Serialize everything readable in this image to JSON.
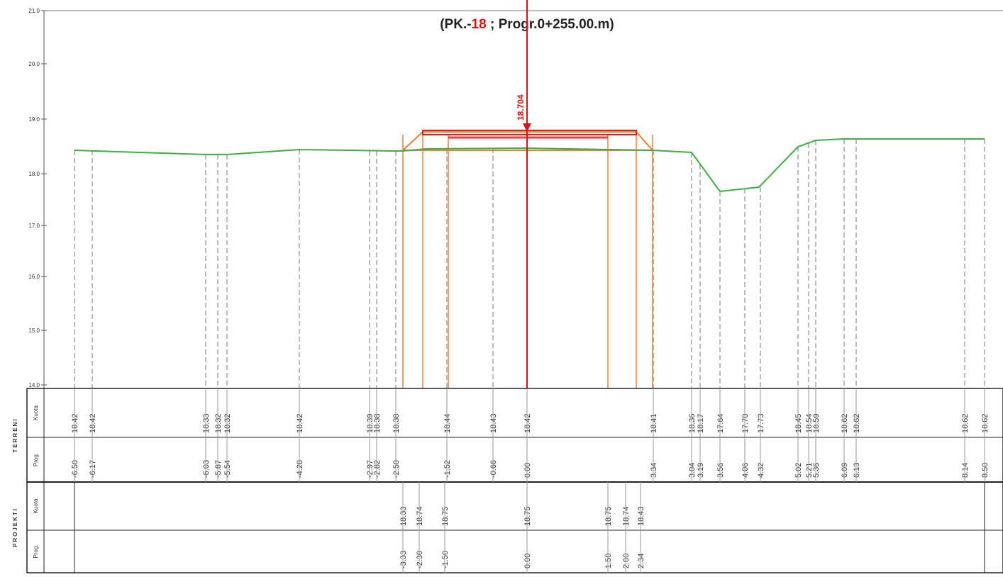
{
  "title": {
    "prefix": "(PK.-",
    "number": "18",
    "suffix": " ; Progr.0+255.00.m)"
  },
  "axis_labels": [
    "21.0",
    "20.0",
    "19.0",
    "18.0",
    "17.0",
    "16.0",
    "15.0",
    "14.0"
  ],
  "center_label": "18.704",
  "groups": [
    "TERRENI",
    "PROJEKTI"
  ],
  "row_headers": [
    "Kuota",
    "Prog.",
    "Kuota",
    "Prog."
  ],
  "terreni": {
    "kuota": [
      "18.42",
      "18.42",
      "18.33",
      "18.32",
      "18.32",
      "18.42",
      "18.39",
      "18.38",
      "18.38",
      "18.44",
      "18.43",
      "18.42",
      "18.41",
      "18.36",
      "18.17",
      "17.64",
      "17.70",
      "17.73",
      "18.45",
      "18.54",
      "18.59",
      "18.62",
      "18.62",
      "18.62",
      "18.62"
    ],
    "prog": [
      "-6.50",
      "-6.17",
      "-6.03",
      "-5.87",
      "-5.54",
      "-4.28",
      "-2.97",
      "-2.82",
      "-2.50",
      "-1.52",
      "-0.66",
      "0.00",
      "3.34",
      "3.04",
      "3.19",
      "3.56",
      "4.06",
      "4.32",
      "5.02",
      "5.21",
      "5.36",
      "6.09",
      "6.13",
      "8.14",
      "8.50"
    ]
  },
  "projekti": {
    "kuota": [
      "18.33",
      "18.74",
      "18.75",
      "18.75",
      "18.75",
      "18.74",
      "18.43"
    ],
    "prog": [
      "-3.33",
      "-2.30",
      "-1.50",
      "0.00",
      "1.50",
      "2.00",
      "2.34"
    ]
  }
}
